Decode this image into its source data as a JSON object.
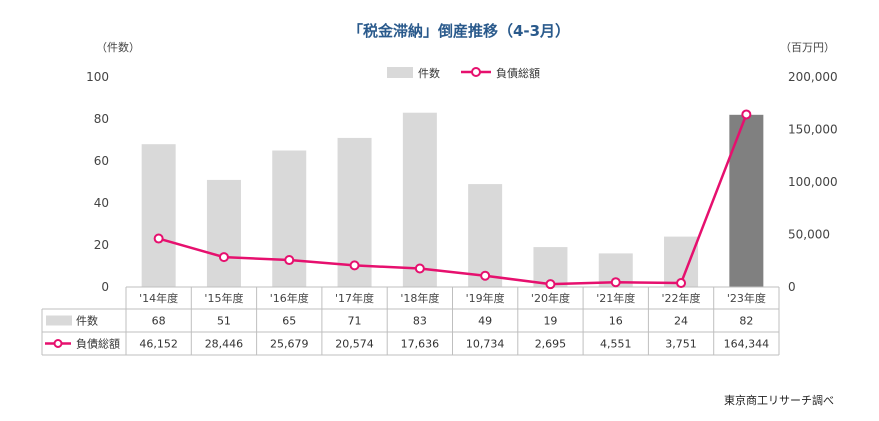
{
  "chart_data": {
    "type": "bar+line",
    "title": "「税金滞納」倒産推移（4-3月）",
    "categories": [
      "'14年度",
      "'15年度",
      "'16年度",
      "'17年度",
      "'18年度",
      "'19年度",
      "'20年度",
      "'21年度",
      "'22年度",
      "'23年度"
    ],
    "series": [
      {
        "name": "件数",
        "type": "bar",
        "axis": "left",
        "values": [
          68,
          51,
          65,
          71,
          83,
          49,
          19,
          16,
          24,
          82
        ],
        "color": "#d9d9d9",
        "highlight_color": "#808080",
        "highlight_index": 9
      },
      {
        "name": "負債総額",
        "type": "line",
        "axis": "right",
        "values": [
          46152,
          28446,
          25679,
          20574,
          17636,
          10734,
          2695,
          4551,
          3751,
          164344
        ],
        "color": "#e6106e"
      }
    ],
    "y_left": {
      "unit": "（件数）",
      "min": 0,
      "max": 100,
      "ticks": [
        "0",
        "20",
        "40",
        "60",
        "80",
        "100"
      ]
    },
    "y_right": {
      "unit": "（百万円）",
      "min": 0,
      "max": 200000,
      "ticks": [
        "0",
        "50,000",
        "100,000",
        "150,000",
        "200,000"
      ]
    },
    "table": {
      "rows": [
        {
          "label": "件数",
          "values": [
            "68",
            "51",
            "65",
            "71",
            "83",
            "49",
            "19",
            "16",
            "24",
            "82"
          ]
        },
        {
          "label": "負債総額",
          "values": [
            "46,152",
            "28,446",
            "25,679",
            "20,574",
            "17,636",
            "10,734",
            "2,695",
            "4,551",
            "3,751",
            "164,344"
          ]
        }
      ]
    },
    "legend_position": "top"
  },
  "source": "東京商工リサーチ調べ"
}
